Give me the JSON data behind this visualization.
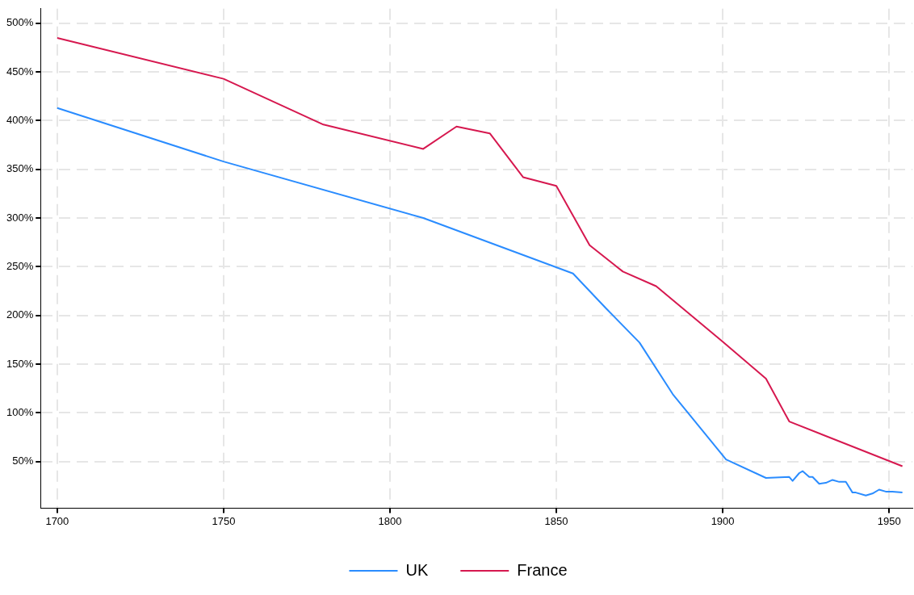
{
  "chart_data": {
    "type": "line",
    "series": [
      {
        "name": "UK",
        "color": "#2a8cff",
        "x": [
          1700,
          1750,
          1810,
          1855,
          1865,
          1875,
          1885,
          1901,
          1913,
          1920,
          1921,
          1923,
          1924,
          1926,
          1927,
          1929,
          1931,
          1933,
          1935,
          1937,
          1939,
          1940,
          1943,
          1945,
          1947,
          1949,
          1951,
          1954
        ],
        "values": [
          413,
          358,
          300,
          243,
          207,
          172,
          119,
          52,
          33,
          34,
          30,
          38,
          40,
          34,
          34,
          27,
          28,
          31,
          29,
          29,
          18,
          18,
          15,
          17,
          21,
          19,
          19,
          18
        ]
      },
      {
        "name": "France",
        "color": "#d6184f",
        "x": [
          1700,
          1750,
          1780,
          1810,
          1820,
          1830,
          1840,
          1850,
          1860,
          1870,
          1880,
          1900,
          1913,
          1920,
          1954
        ],
        "values": [
          485,
          443,
          396,
          371,
          394,
          387,
          342,
          333,
          272,
          245,
          230,
          173,
          135,
          91,
          45
        ]
      }
    ],
    "xlim": [
      1695,
      1957
    ],
    "xticks": [
      1700,
      1750,
      1800,
      1850,
      1900,
      1950
    ],
    "ylim": [
      2,
      515
    ],
    "yticks": [
      {
        "value": 50,
        "label": "50%"
      },
      {
        "value": 100,
        "label": "100%"
      },
      {
        "value": 150,
        "label": "150%"
      },
      {
        "value": 200,
        "label": "200%"
      },
      {
        "value": 250,
        "label": "250%"
      },
      {
        "value": 300,
        "label": "300%"
      },
      {
        "value": 350,
        "label": "350%"
      },
      {
        "value": 400,
        "label": "400%"
      },
      {
        "value": 450,
        "label": "450%"
      },
      {
        "value": 500,
        "label": "500%"
      }
    ],
    "grid": true,
    "legend": "bottom",
    "marker": "none",
    "line_style": "solid"
  }
}
